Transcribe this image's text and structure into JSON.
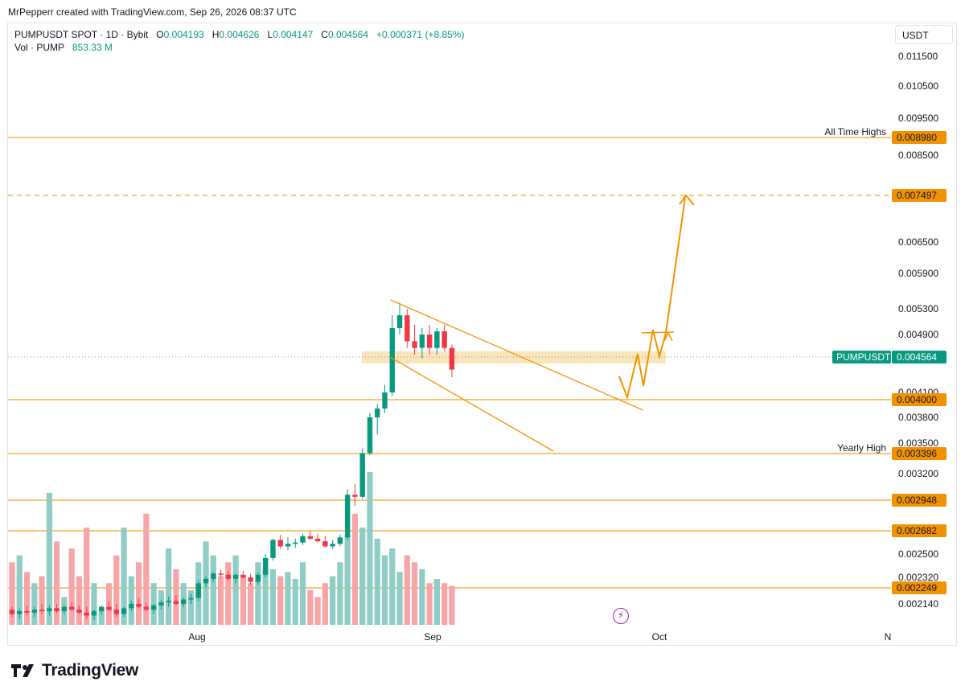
{
  "header": {
    "credit": "MrPepperr created with TradingView.com, Sep 26, 2026 08:37 UTC",
    "symbol": "PUMPUSDT SPOT · 1D · Bybit",
    "o_label": "O",
    "o_value": "0.004193",
    "h_label": "H",
    "h_value": "0.004626",
    "l_label": "L",
    "l_value": "0.004147",
    "c_label": "C",
    "c_value": "0.004564",
    "change": "+0.000371 (+8.85%)",
    "vol_label": "Vol · PUMP",
    "vol_value": "853.33 M",
    "currency": "USDT"
  },
  "brand": {
    "name": "TradingView"
  },
  "colors": {
    "up": "#089981",
    "down": "#f23645",
    "up_vol": "#8fcdc6",
    "down_vol": "#f7a5a9",
    "level": "#f7a21b",
    "annotation": "#f39200",
    "zone": "#fbe3b3",
    "price_line": "#2962ff"
  },
  "icons": {
    "lightning": "lightning-icon"
  },
  "chart_data": {
    "type": "candlestick",
    "symbol": "PUMPUSDT",
    "interval": "1D",
    "x_ticks": [
      "Aug",
      "Sep",
      "Oct",
      "N"
    ],
    "y_ticks": [
      "0.011500",
      "0.010500",
      "0.009500",
      "0.008500",
      "0.006500",
      "0.005900",
      "0.005300",
      "0.004900",
      "0.004100",
      "0.003800",
      "0.003500",
      "0.003200",
      "0.002500",
      "0.002320",
      "0.002140"
    ],
    "last_price": {
      "label": "PUMPUSDT",
      "value": "0.004564"
    },
    "levels": [
      {
        "value": "0.008980",
        "label": "All Time Highs",
        "style": "solid"
      },
      {
        "value": "0.007497",
        "label": "",
        "style": "dashed"
      },
      {
        "value": "0.004000",
        "label": "",
        "style": "solid"
      },
      {
        "value": "0.003396",
        "label": "Yearly High",
        "style": "solid"
      },
      {
        "value": "0.002948",
        "label": "",
        "style": "solid"
      },
      {
        "value": "0.002682",
        "label": "",
        "style": "solid"
      },
      {
        "value": "0.002249",
        "label": "",
        "style": "solid"
      }
    ],
    "resistance_zone": [
      0.00448,
      0.00465
    ],
    "channel": {
      "upper": [
        [
          0.00545,
          0.00388
        ]
      ],
      "lower": [
        [
          0.00456,
          0.00342
        ]
      ]
    },
    "candles": [
      [
        0.0021,
        0.00212,
        0.00205,
        0.00207
      ],
      [
        0.00207,
        0.00211,
        0.00204,
        0.00209
      ],
      [
        0.00209,
        0.00213,
        0.00206,
        0.00208
      ],
      [
        0.00208,
        0.00212,
        0.00205,
        0.0021
      ],
      [
        0.0021,
        0.00214,
        0.00207,
        0.00209
      ],
      [
        0.00209,
        0.00213,
        0.00206,
        0.00211
      ],
      [
        0.00211,
        0.00214,
        0.00208,
        0.00209
      ],
      [
        0.00209,
        0.00213,
        0.00207,
        0.00212
      ],
      [
        0.00212,
        0.00215,
        0.00209,
        0.0021
      ],
      [
        0.0021,
        0.00213,
        0.00207,
        0.00208
      ],
      [
        0.00208,
        0.00212,
        0.00204,
        0.00206
      ],
      [
        0.00206,
        0.0021,
        0.00203,
        0.00209
      ],
      [
        0.00209,
        0.00213,
        0.00207,
        0.00212
      ],
      [
        0.00212,
        0.00216,
        0.00209,
        0.0021
      ],
      [
        0.0021,
        0.00214,
        0.00205,
        0.00207
      ],
      [
        0.00207,
        0.00212,
        0.00205,
        0.00211
      ],
      [
        0.00211,
        0.00216,
        0.00209,
        0.00214
      ],
      [
        0.00214,
        0.00218,
        0.00211,
        0.00212
      ],
      [
        0.00212,
        0.00215,
        0.00209,
        0.0021
      ],
      [
        0.0021,
        0.00214,
        0.00207,
        0.00213
      ],
      [
        0.00213,
        0.00217,
        0.0021,
        0.00215
      ],
      [
        0.00215,
        0.00219,
        0.00212,
        0.00216
      ],
      [
        0.00216,
        0.0022,
        0.00213,
        0.00214
      ],
      [
        0.00214,
        0.00218,
        0.00212,
        0.00217
      ],
      [
        0.00217,
        0.00221,
        0.00214,
        0.00218
      ],
      [
        0.00218,
        0.0023,
        0.00216,
        0.00228
      ],
      [
        0.00228,
        0.00233,
        0.00225,
        0.00231
      ],
      [
        0.00231,
        0.00236,
        0.00229,
        0.00235
      ],
      [
        0.00235,
        0.00238,
        0.00232,
        0.00234
      ],
      [
        0.00234,
        0.00237,
        0.0023,
        0.00231
      ],
      [
        0.00231,
        0.00235,
        0.00228,
        0.00234
      ],
      [
        0.00234,
        0.00237,
        0.00231,
        0.00232
      ],
      [
        0.00232,
        0.00235,
        0.00227,
        0.00229
      ],
      [
        0.00229,
        0.00236,
        0.00227,
        0.00234
      ],
      [
        0.00234,
        0.0025,
        0.00232,
        0.00247
      ],
      [
        0.00247,
        0.00262,
        0.00245,
        0.00261
      ],
      [
        0.00261,
        0.00265,
        0.00254,
        0.00256
      ],
      [
        0.00256,
        0.00263,
        0.00253,
        0.00258
      ],
      [
        0.00258,
        0.00262,
        0.00255,
        0.00259
      ],
      [
        0.00259,
        0.00266,
        0.00257,
        0.00264
      ],
      [
        0.00264,
        0.00268,
        0.00261,
        0.00262
      ],
      [
        0.00262,
        0.00266,
        0.00259,
        0.0026
      ],
      [
        0.0026,
        0.00264,
        0.00255,
        0.00256
      ],
      [
        0.00256,
        0.00261,
        0.00254,
        0.00258
      ],
      [
        0.00258,
        0.00265,
        0.00256,
        0.00263
      ],
      [
        0.00263,
        0.00305,
        0.00261,
        0.003
      ],
      [
        0.003,
        0.0031,
        0.0029,
        0.00298
      ],
      [
        0.00298,
        0.00345,
        0.00296,
        0.0034
      ],
      [
        0.0034,
        0.00385,
        0.00338,
        0.0038
      ],
      [
        0.0038,
        0.00395,
        0.0036,
        0.0039
      ],
      [
        0.0039,
        0.0042,
        0.00385,
        0.0041
      ],
      [
        0.0041,
        0.0052,
        0.00405,
        0.005
      ],
      [
        0.005,
        0.0054,
        0.0049,
        0.0052
      ],
      [
        0.0052,
        0.0053,
        0.0047,
        0.0048
      ],
      [
        0.0048,
        0.00505,
        0.0046,
        0.0047
      ],
      [
        0.0047,
        0.005,
        0.00455,
        0.0049
      ],
      [
        0.0049,
        0.00505,
        0.0046,
        0.0047
      ],
      [
        0.0047,
        0.005,
        0.0046,
        0.00495
      ],
      [
        0.00495,
        0.00505,
        0.00465,
        0.0047
      ],
      [
        0.0047,
        0.00475,
        0.0043,
        0.0044
      ]
    ],
    "volumes_relative": [
      0.45,
      0.5,
      0.38,
      0.3,
      0.35,
      0.95,
      0.6,
      0.2,
      0.55,
      0.35,
      0.7,
      0.3,
      0.12,
      0.3,
      0.5,
      0.7,
      0.35,
      0.45,
      0.8,
      0.3,
      0.25,
      0.55,
      0.4,
      0.3,
      0.25,
      0.45,
      0.6,
      0.5,
      0.35,
      0.45,
      0.5,
      0.35,
      0.3,
      0.45,
      0.4,
      0.4,
      0.35,
      0.38,
      0.33,
      0.45,
      0.25,
      0.2,
      0.3,
      0.35,
      0.45,
      0.65,
      0.8,
      0.7,
      1.1,
      0.62,
      0.5,
      0.55,
      0.38,
      0.5,
      0.45,
      0.4,
      0.3,
      0.33,
      0.3,
      0.28
    ]
  }
}
